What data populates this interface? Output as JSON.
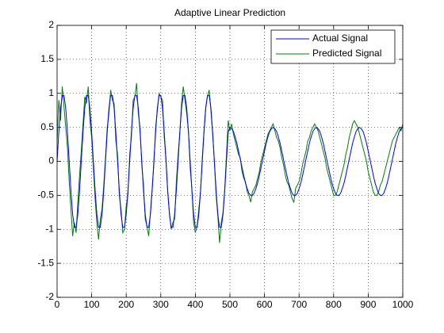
{
  "chart_data": {
    "type": "line",
    "title": "Adaptive Linear Prediction",
    "x": [
      0,
      5,
      10,
      15,
      20,
      25,
      30,
      35,
      40,
      45,
      50,
      55,
      60,
      65,
      70,
      75,
      80,
      85,
      90,
      95,
      100,
      105,
      110,
      115,
      120,
      125,
      130,
      135,
      140,
      145,
      150,
      155,
      160,
      165,
      170,
      175,
      180,
      185,
      190,
      195,
      200,
      205,
      210,
      215,
      220,
      225,
      230,
      235,
      240,
      245,
      250,
      255,
      260,
      265,
      270,
      275,
      280,
      285,
      290,
      295,
      300,
      305,
      310,
      315,
      320,
      325,
      330,
      335,
      340,
      345,
      350,
      355,
      360,
      365,
      370,
      375,
      380,
      385,
      390,
      395,
      400,
      405,
      410,
      415,
      420,
      425,
      430,
      435,
      440,
      445,
      450,
      455,
      460,
      465,
      470,
      475,
      480,
      485,
      490,
      495,
      500,
      505,
      510,
      515,
      520,
      525,
      530,
      535,
      540,
      545,
      550,
      555,
      560,
      565,
      570,
      575,
      580,
      585,
      590,
      595,
      600,
      605,
      610,
      615,
      620,
      625,
      630,
      635,
      640,
      645,
      650,
      655,
      660,
      665,
      670,
      675,
      680,
      685,
      690,
      695,
      700,
      705,
      710,
      715,
      720,
      725,
      730,
      735,
      740,
      745,
      750,
      755,
      760,
      765,
      770,
      775,
      780,
      785,
      790,
      795,
      800,
      805,
      810,
      815,
      820,
      825,
      830,
      835,
      840,
      845,
      850,
      855,
      860,
      865,
      870,
      875,
      880,
      885,
      890,
      895,
      900,
      905,
      910,
      915,
      920,
      925,
      930,
      935,
      940,
      945,
      950,
      955,
      960,
      965,
      970,
      975,
      980,
      985,
      990,
      995,
      1000
    ],
    "series": [
      {
        "name": "Actual Signal",
        "color": "#0000ff",
        "values": [
          0,
          0.43,
          0.78,
          0.97,
          0.97,
          0.78,
          0.43,
          0,
          -0.43,
          -0.78,
          -0.97,
          -0.97,
          -0.78,
          -0.43,
          0,
          0.43,
          0.78,
          0.97,
          0.97,
          0.78,
          0.43,
          0,
          -0.43,
          -0.78,
          -0.97,
          -0.97,
          -0.78,
          -0.43,
          0,
          0.43,
          0.78,
          0.97,
          0.97,
          0.78,
          0.43,
          0,
          -0.43,
          -0.78,
          -0.97,
          -0.97,
          -0.78,
          -0.43,
          0,
          0.43,
          0.78,
          0.97,
          0.97,
          0.78,
          0.43,
          0,
          -0.43,
          -0.78,
          -0.97,
          -0.97,
          -0.78,
          -0.43,
          0,
          0.43,
          0.78,
          0.97,
          0.97,
          0.78,
          0.43,
          0,
          -0.43,
          -0.78,
          -0.97,
          -0.97,
          -0.78,
          -0.43,
          0,
          0.43,
          0.78,
          0.97,
          0.97,
          0.78,
          0.43,
          0,
          -0.43,
          -0.78,
          -0.97,
          -0.97,
          -0.78,
          -0.43,
          0,
          0.43,
          0.78,
          0.97,
          0.97,
          0.78,
          0.43,
          0,
          -0.43,
          -0.78,
          -0.97,
          -0.97,
          -0.78,
          -0.43,
          0,
          0.43,
          0.5,
          0.48,
          0.44,
          0.36,
          0.27,
          0.15,
          0.03,
          -0.09,
          -0.21,
          -0.32,
          -0.4,
          -0.47,
          -0.5,
          -0.5,
          -0.47,
          -0.4,
          -0.32,
          -0.21,
          -0.09,
          0.03,
          0.15,
          0.27,
          0.36,
          0.44,
          0.48,
          0.5,
          0.48,
          0.44,
          0.36,
          0.27,
          0.15,
          0.03,
          -0.09,
          -0.21,
          -0.32,
          -0.4,
          -0.47,
          -0.5,
          -0.5,
          -0.47,
          -0.4,
          -0.32,
          -0.21,
          -0.09,
          0.03,
          0.15,
          0.27,
          0.36,
          0.44,
          0.48,
          0.5,
          0.48,
          0.44,
          0.36,
          0.27,
          0.15,
          0.03,
          -0.09,
          -0.21,
          -0.32,
          -0.4,
          -0.47,
          -0.5,
          -0.5,
          -0.47,
          -0.4,
          -0.32,
          -0.21,
          -0.09,
          0.03,
          0.15,
          0.27,
          0.36,
          0.44,
          0.48,
          0.5,
          0.48,
          0.44,
          0.36,
          0.27,
          0.15,
          0.03,
          -0.09,
          -0.21,
          -0.32,
          -0.4,
          -0.47,
          -0.5,
          -0.5,
          -0.47,
          -0.4,
          -0.32,
          -0.21,
          -0.09,
          0.03,
          0.15,
          0.27,
          0.36,
          0.44,
          0.48,
          0.5
        ]
      },
      {
        "name": "Predicted Signal",
        "color": "#008000",
        "values": [
          0.3,
          0.9,
          0.6,
          1.1,
          0.8,
          0.5,
          0.2,
          -0.3,
          -0.7,
          -1.1,
          -0.9,
          -1.05,
          -0.6,
          -0.2,
          0.15,
          0.55,
          0.95,
          0.85,
          1.1,
          0.6,
          0.35,
          -0.1,
          -0.55,
          -0.9,
          -1.15,
          -0.85,
          -0.7,
          -0.35,
          0.05,
          0.5,
          0.7,
          1.05,
          0.9,
          0.85,
          0.3,
          0.1,
          -0.5,
          -0.7,
          -1.05,
          -1.0,
          -0.65,
          -0.5,
          0.1,
          0.35,
          0.9,
          0.95,
          1.15,
          0.7,
          0.5,
          -0.05,
          -0.35,
          -0.85,
          -0.95,
          -1.1,
          -0.75,
          -0.4,
          -0.05,
          0.5,
          0.75,
          1.0,
          0.95,
          0.9,
          0.35,
          0.05,
          -0.45,
          -0.75,
          -1.0,
          -0.9,
          -0.85,
          -0.3,
          0.1,
          0.4,
          0.85,
          1.1,
          0.9,
          0.7,
          0.45,
          -0.1,
          -0.4,
          -0.9,
          -1.05,
          -0.95,
          -0.7,
          -0.45,
          0.05,
          0.45,
          0.8,
          0.95,
          1.05,
          0.75,
          0.4,
          0.0,
          -0.5,
          -0.8,
          -1.2,
          -0.9,
          -0.75,
          -0.4,
          0.1,
          0.6,
          0.45,
          0.55,
          0.4,
          0.3,
          0.2,
          0.1,
          0.05,
          -0.15,
          -0.25,
          -0.3,
          -0.45,
          -0.5,
          -0.6,
          -0.45,
          -0.4,
          -0.35,
          -0.25,
          -0.15,
          0.0,
          0.1,
          0.2,
          0.3,
          0.4,
          0.45,
          0.5,
          0.55,
          0.45,
          0.35,
          0.3,
          0.2,
          0.05,
          -0.05,
          -0.2,
          -0.3,
          -0.35,
          -0.45,
          -0.55,
          -0.6,
          -0.4,
          -0.35,
          -0.3,
          -0.2,
          -0.05,
          0.05,
          0.15,
          0.3,
          0.35,
          0.45,
          0.5,
          0.55,
          0.5,
          0.45,
          0.35,
          0.25,
          0.15,
          0.05,
          -0.1,
          -0.2,
          -0.3,
          -0.4,
          -0.5,
          -0.5,
          -0.45,
          -0.35,
          -0.25,
          -0.15,
          -0.05,
          0.1,
          0.2,
          0.35,
          0.45,
          0.55,
          0.6,
          0.55,
          0.5,
          0.4,
          0.3,
          0.2,
          0.1,
          0.0,
          -0.15,
          -0.25,
          -0.35,
          -0.45,
          -0.5,
          -0.5,
          -0.45,
          -0.35,
          -0.3,
          -0.2,
          -0.1,
          0.0,
          0.1,
          0.2,
          0.3,
          0.35,
          0.4,
          0.45,
          0.5,
          0.45,
          0.55
        ]
      }
    ],
    "xlim": [
      0,
      1000
    ],
    "xticks": [
      0,
      100,
      200,
      300,
      400,
      500,
      600,
      700,
      800,
      900,
      1000
    ],
    "ylim": [
      -2,
      2
    ],
    "yticks": [
      -2,
      -1.5,
      -1,
      -0.5,
      0,
      0.5,
      1,
      1.5,
      2
    ],
    "grid": true,
    "legend": "top-right"
  }
}
